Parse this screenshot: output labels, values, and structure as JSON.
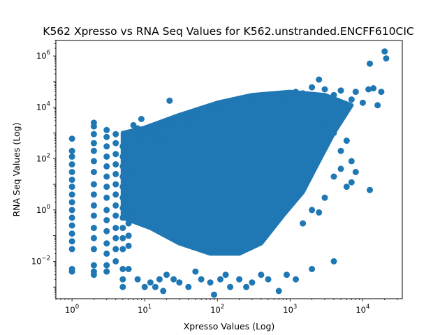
{
  "chart_data": {
    "type": "scatter",
    "title": "K562 Xpresso vs RNA Seq Values for K562.unstranded.ENCFF610CIC",
    "xlabel": "Xpresso Values (Log)",
    "ylabel": "RNA Seq Values (Log)",
    "xscale": "log",
    "yscale": "log",
    "xlim": [
      0.6,
      35000
    ],
    "ylim": [
      0.00035,
      4000000
    ],
    "grid": false,
    "legend": "none",
    "marker_color": "#1f77b4",
    "x_ticks": [
      {
        "value": 1,
        "base": "10",
        "exp": "0"
      },
      {
        "value": 10,
        "base": "10",
        "exp": "1"
      },
      {
        "value": 100,
        "base": "10",
        "exp": "2"
      },
      {
        "value": 1000,
        "base": "10",
        "exp": "3"
      },
      {
        "value": 10000,
        "base": "10",
        "exp": "4"
      }
    ],
    "y_ticks": [
      {
        "value": 0.01,
        "base": "10",
        "exp": "−2"
      },
      {
        "value": 1,
        "base": "10",
        "exp": "0"
      },
      {
        "value": 100,
        "base": "10",
        "exp": "2"
      },
      {
        "value": 10000,
        "base": "10",
        "exp": "4"
      },
      {
        "value": 1000000,
        "base": "10",
        "exp": "6"
      }
    ],
    "points": [
      [
        1,
        600
      ],
      [
        1,
        200
      ],
      [
        1,
        120
      ],
      [
        1,
        60
      ],
      [
        1,
        30
      ],
      [
        1,
        15
      ],
      [
        1,
        8
      ],
      [
        1,
        4
      ],
      [
        1,
        2
      ],
      [
        1,
        1
      ],
      [
        1,
        0.5
      ],
      [
        1,
        0.25
      ],
      [
        1,
        0.12
      ],
      [
        1,
        0.06
      ],
      [
        1,
        0.03
      ],
      [
        1,
        0.005
      ],
      [
        1,
        0.004
      ],
      [
        2,
        2500
      ],
      [
        2,
        1800
      ],
      [
        2,
        900
      ],
      [
        2,
        400
      ],
      [
        2,
        200
      ],
      [
        2,
        80
      ],
      [
        2,
        30
      ],
      [
        2,
        10
      ],
      [
        2,
        4
      ],
      [
        2,
        1.5
      ],
      [
        2,
        0.6
      ],
      [
        2,
        0.2
      ],
      [
        2,
        0.08
      ],
      [
        2,
        0.03
      ],
      [
        2,
        0.007
      ],
      [
        2,
        0.004
      ],
      [
        2,
        0.003
      ],
      [
        3,
        1300
      ],
      [
        3,
        700
      ],
      [
        3,
        300
      ],
      [
        3,
        120
      ],
      [
        3,
        50
      ],
      [
        3,
        20
      ],
      [
        3,
        8
      ],
      [
        3,
        3
      ],
      [
        3,
        1
      ],
      [
        3,
        0.4
      ],
      [
        3,
        0.15
      ],
      [
        3,
        0.05
      ],
      [
        3,
        0.02
      ],
      [
        3,
        0.007
      ],
      [
        3,
        0.004
      ],
      [
        4,
        900
      ],
      [
        4,
        400
      ],
      [
        4,
        150
      ],
      [
        4,
        60
      ],
      [
        4,
        25
      ],
      [
        4,
        10
      ],
      [
        4,
        4
      ],
      [
        4,
        1.5
      ],
      [
        4,
        0.6
      ],
      [
        4,
        0.2
      ],
      [
        4,
        0.08
      ],
      [
        4,
        0.03
      ],
      [
        4,
        0.01
      ],
      [
        5,
        300
      ],
      [
        5,
        120
      ],
      [
        5,
        50
      ],
      [
        5,
        20
      ],
      [
        5,
        8
      ],
      [
        5,
        3
      ],
      [
        5,
        1.2
      ],
      [
        5,
        0.5
      ],
      [
        5,
        0.2
      ],
      [
        5,
        0.08
      ],
      [
        5,
        0.03
      ],
      [
        5,
        0.005
      ],
      [
        5,
        0.002
      ],
      [
        5,
        0.001
      ],
      [
        6,
        200
      ],
      [
        6,
        80
      ],
      [
        6,
        30
      ],
      [
        6,
        12
      ],
      [
        6,
        5
      ],
      [
        6,
        2
      ],
      [
        6,
        0.8
      ],
      [
        6,
        0.3
      ],
      [
        6,
        0.1
      ],
      [
        6,
        0.04
      ],
      [
        6,
        0.005
      ],
      [
        7,
        2000
      ],
      [
        8,
        1500
      ],
      [
        8,
        500
      ],
      [
        9,
        3500
      ],
      [
        10,
        1000
      ],
      [
        12,
        800
      ],
      [
        14,
        1500
      ],
      [
        16,
        500
      ],
      [
        20,
        3000
      ],
      [
        22,
        700
      ],
      [
        25,
        2000
      ],
      [
        30,
        400
      ],
      [
        35,
        4000
      ],
      [
        40,
        1500
      ],
      [
        8,
        0.002
      ],
      [
        10,
        0.001
      ],
      [
        12,
        0.0015
      ],
      [
        14,
        0.001
      ],
      [
        16,
        0.002
      ],
      [
        18,
        0.0007
      ],
      [
        20,
        0.003
      ],
      [
        25,
        0.002
      ],
      [
        30,
        0.0015
      ],
      [
        40,
        0.001
      ],
      [
        50,
        0.004
      ],
      [
        60,
        0.002
      ],
      [
        80,
        0.0015
      ],
      [
        90,
        0.0005
      ],
      [
        110,
        0.002
      ],
      [
        130,
        0.003
      ],
      [
        150,
        0.001
      ],
      [
        200,
        0.002
      ],
      [
        250,
        0.001
      ],
      [
        300,
        0.0015
      ],
      [
        400,
        0.003
      ],
      [
        500,
        0.002
      ],
      [
        700,
        0.0007
      ],
      [
        900,
        0.003
      ],
      [
        1200,
        0.002
      ],
      [
        2000,
        0.005
      ],
      [
        4000,
        0.01
      ],
      [
        22,
        18000
      ],
      [
        50,
        5000
      ],
      [
        80,
        8000
      ],
      [
        100,
        10000
      ],
      [
        150,
        12000
      ],
      [
        200,
        20000
      ],
      [
        300,
        15000
      ],
      [
        500,
        25000
      ],
      [
        700,
        30000
      ],
      [
        900,
        20000
      ],
      [
        1200,
        40000
      ],
      [
        1500,
        35000
      ],
      [
        2000,
        60000
      ],
      [
        2500,
        120000
      ],
      [
        3000,
        50000
      ],
      [
        4000,
        30000
      ],
      [
        5000,
        45000
      ],
      [
        7000,
        20000
      ],
      [
        8000,
        40000
      ],
      [
        10000,
        15000
      ],
      [
        12000,
        50000
      ],
      [
        14000,
        55000
      ],
      [
        16000,
        12000
      ],
      [
        18000,
        40000
      ],
      [
        12500,
        500000
      ],
      [
        20000,
        1500000
      ],
      [
        21000,
        800000
      ],
      [
        12500,
        6
      ],
      [
        2000,
        1
      ],
      [
        4000,
        20
      ],
      [
        5000,
        40
      ],
      [
        6000,
        8
      ],
      [
        7000,
        12
      ],
      [
        8000,
        30
      ],
      [
        3000,
        3
      ],
      [
        2500,
        0.8
      ],
      [
        1500,
        0.3
      ],
      [
        7000,
        80
      ],
      [
        5000,
        200
      ],
      [
        6000,
        500
      ],
      [
        4000,
        1000
      ],
      [
        3000,
        2000
      ]
    ]
  }
}
